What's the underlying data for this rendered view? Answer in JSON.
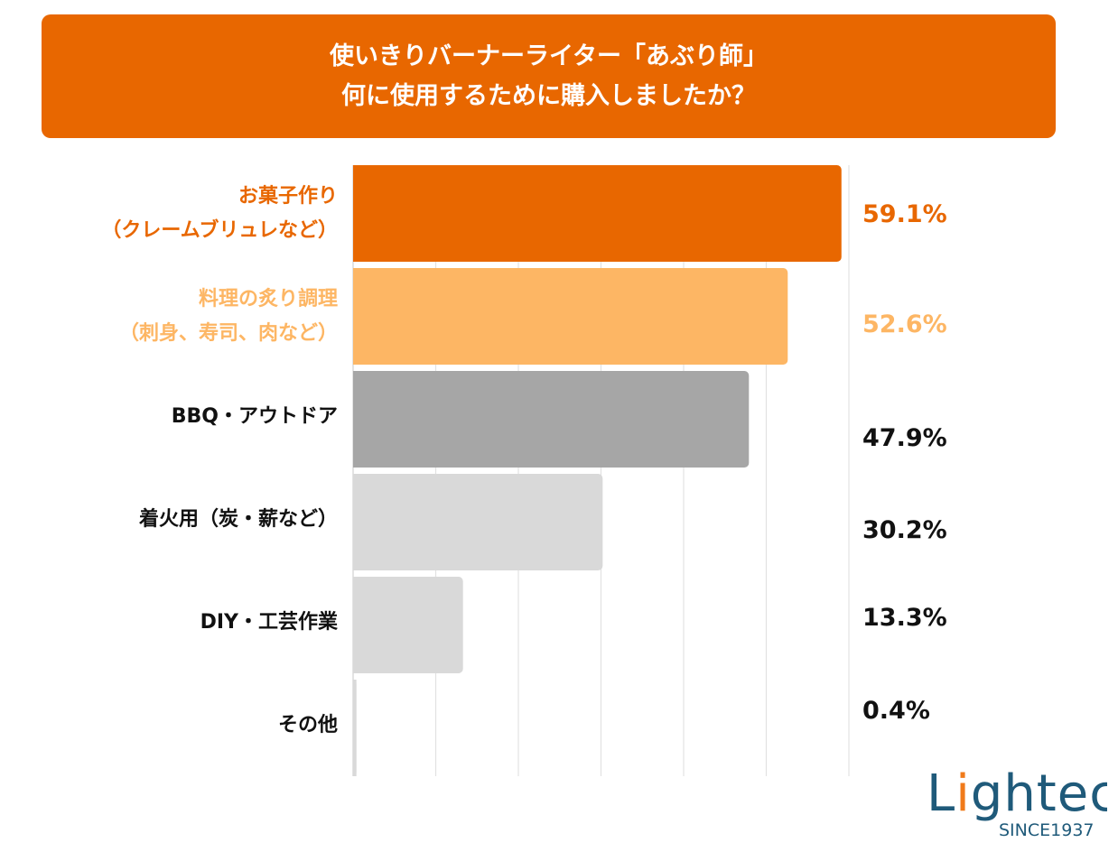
{
  "chart_data": {
    "type": "bar",
    "orientation": "horizontal",
    "title": [
      "使いきりバーナーライター「あぶり師」",
      "何に使用するために購入しましたか？"
    ],
    "categories": [
      [
        "お菓子作り",
        "（クレームブリュレなど）"
      ],
      [
        "料理の炙り調理",
        "（刺身、寿司、肉など）"
      ],
      [
        "BBQ・アウトドア"
      ],
      [
        "着火用（炭・薪など）"
      ],
      [
        "DIY・工芸作業"
      ],
      [
        "その他"
      ]
    ],
    "values": [
      59.1,
      52.6,
      47.9,
      30.2,
      13.3,
      0.4
    ],
    "value_labels": [
      "59.1%",
      "52.6%",
      "47.9%",
      "30.2%",
      "13.3%",
      "0.4%"
    ],
    "bar_colors": [
      "#E86700",
      "#FDB664",
      "#A6A6A6",
      "#D9D9D9",
      "#D9D9D9",
      "#D9D9D9"
    ],
    "label_colors": [
      "#E86700",
      "#FDB664",
      "#111111",
      "#111111",
      "#111111",
      "#111111"
    ],
    "xlim": [
      0,
      60
    ],
    "grid": true,
    "grid_step": 10
  },
  "colors": {
    "title_bg": "#E86700",
    "title_text": "#FFFFFF",
    "logo_blue": "#1F5A7A",
    "logo_flame": "#F07A1A"
  },
  "logo": {
    "name": "Lightec",
    "tagline": "SINCE1937"
  }
}
